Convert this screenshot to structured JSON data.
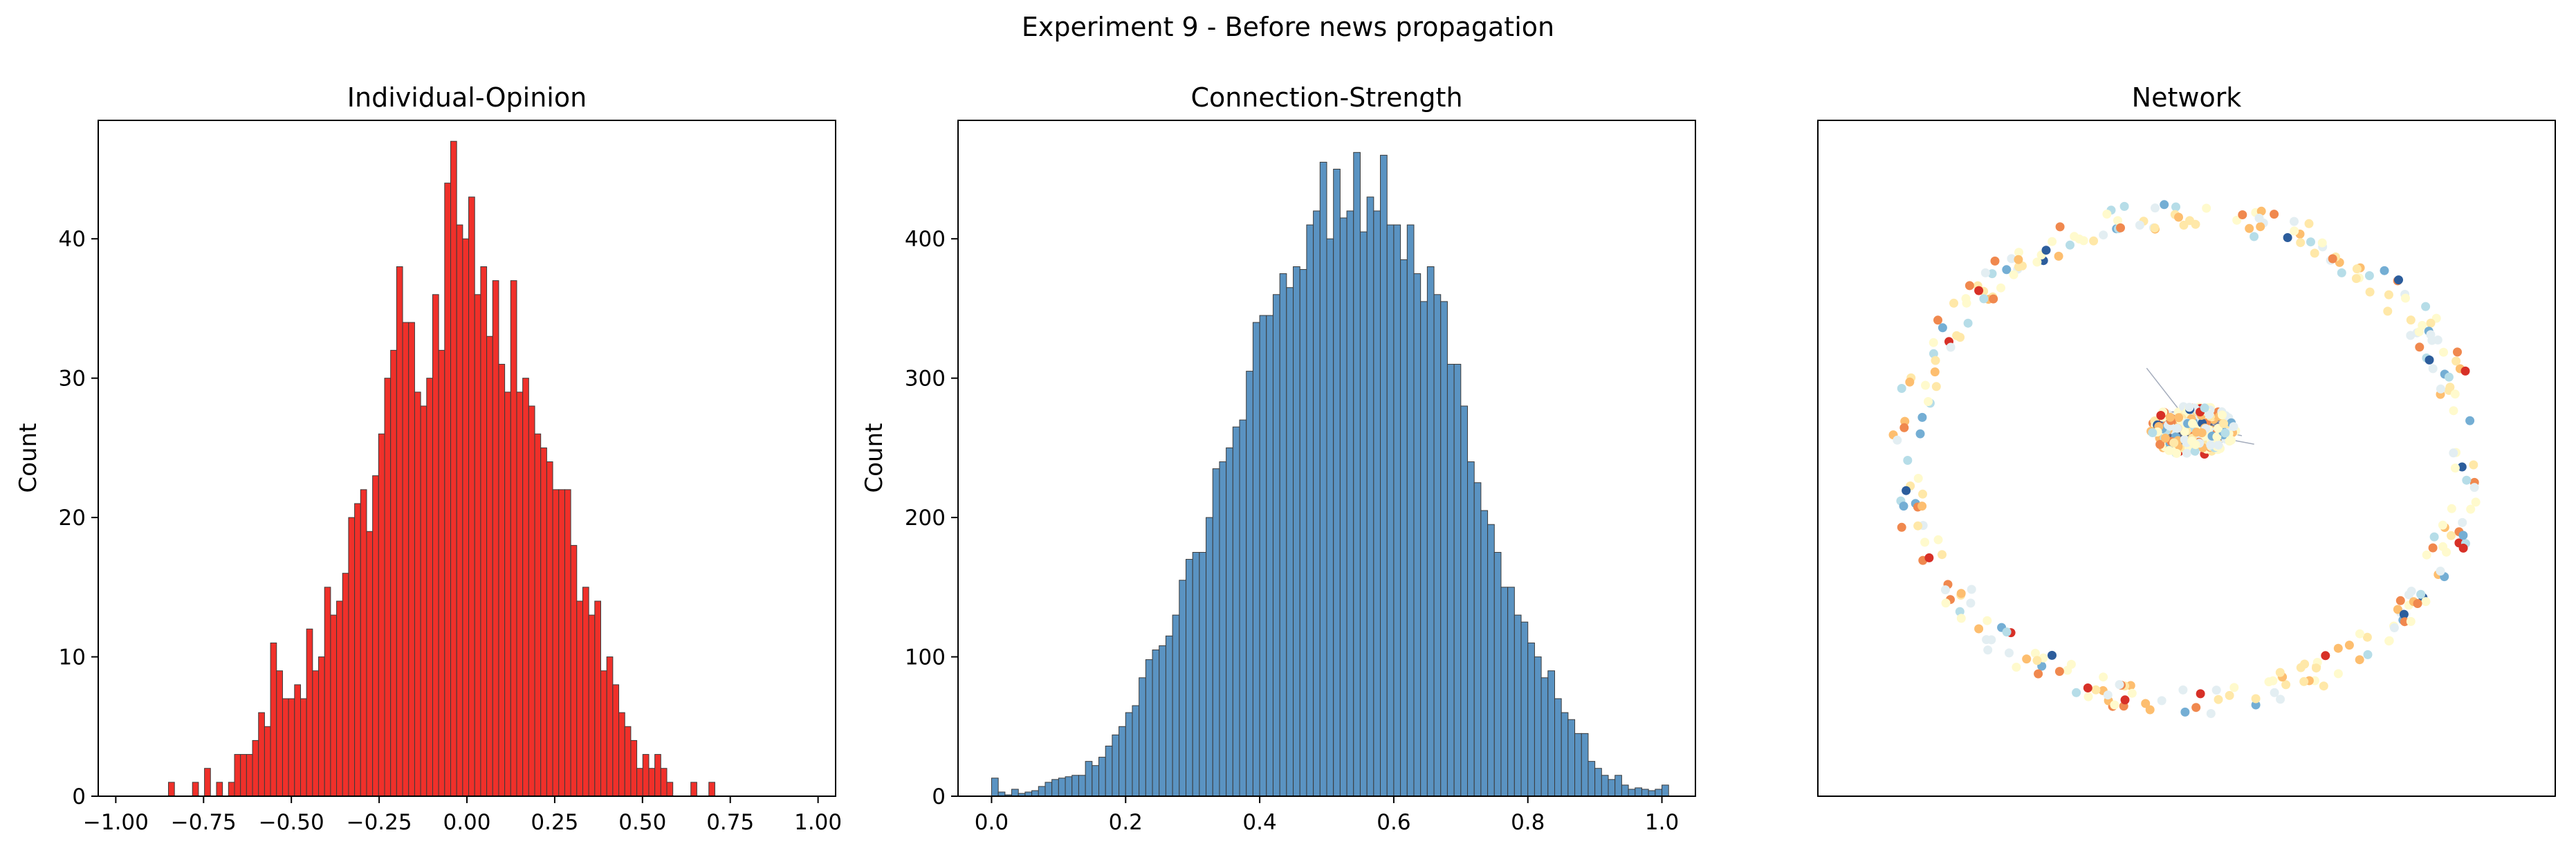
{
  "figure": {
    "suptitle": "Experiment 9 - Before news propagation"
  },
  "colors": {
    "opinion_bar": "#f0302a",
    "strength_bar": "#5a93c2",
    "bar_edge": "#3b3b3b",
    "axes": "#000000"
  },
  "chart_data": [
    {
      "type": "bar",
      "title": "Individual-Opinion",
      "xlabel": "",
      "ylabel": "Count",
      "xlim": [
        -1.05,
        1.05
      ],
      "ylim": [
        0,
        48.5
      ],
      "xticks": [
        -1.0,
        -0.75,
        -0.5,
        -0.25,
        0.0,
        0.25,
        0.5,
        0.75,
        1.0
      ],
      "xtick_labels": [
        "−1.00",
        "−0.75",
        "−0.50",
        "−0.25",
        "0.00",
        "0.25",
        "0.50",
        "0.75",
        "1.00"
      ],
      "yticks": [
        0,
        10,
        20,
        30,
        40
      ],
      "ytick_labels": [
        "0",
        "10",
        "20",
        "30",
        "40"
      ],
      "bin_start": -0.85,
      "bin_width": 0.0171,
      "values": [
        1,
        0,
        0,
        0,
        1,
        0,
        2,
        0,
        1,
        0,
        1,
        3,
        3,
        3,
        4,
        6,
        5,
        11,
        9,
        7,
        7,
        8,
        7,
        12,
        9,
        10,
        15,
        13,
        14,
        16,
        20,
        21,
        22,
        19,
        23,
        26,
        30,
        32,
        38,
        34,
        34,
        29,
        28,
        30,
        36,
        32,
        44,
        47,
        41,
        40,
        43,
        36,
        38,
        33,
        37,
        31,
        29,
        37,
        29,
        30,
        28,
        26,
        25,
        24,
        22,
        22,
        22,
        18,
        14,
        15,
        13,
        14,
        9,
        10,
        8,
        6,
        5,
        4,
        2,
        3,
        2,
        3,
        2,
        1,
        0,
        0,
        0,
        1,
        0,
        0,
        1
      ]
    },
    {
      "type": "bar",
      "title": "Connection-Strength",
      "xlabel": "",
      "ylabel": "Count",
      "xlim": [
        -0.05,
        1.05
      ],
      "ylim": [
        0,
        485
      ],
      "xticks": [
        0.0,
        0.2,
        0.4,
        0.6,
        0.8,
        1.0
      ],
      "xtick_labels": [
        "0.0",
        "0.2",
        "0.4",
        "0.6",
        "0.8",
        "1.0"
      ],
      "yticks": [
        0,
        100,
        200,
        300,
        400
      ],
      "ytick_labels": [
        "0",
        "100",
        "200",
        "300",
        "400"
      ],
      "bin_start": 0.0,
      "bin_width": 0.01,
      "values": [
        13,
        3,
        1,
        5,
        2,
        3,
        4,
        7,
        10,
        12,
        13,
        14,
        15,
        15,
        25,
        22,
        28,
        36,
        44,
        50,
        60,
        65,
        85,
        98,
        105,
        108,
        115,
        130,
        155,
        170,
        175,
        175,
        200,
        235,
        240,
        250,
        265,
        270,
        305,
        340,
        345,
        345,
        360,
        375,
        365,
        380,
        378,
        410,
        420,
        455,
        400,
        450,
        415,
        420,
        462,
        405,
        430,
        420,
        460,
        410,
        410,
        385,
        410,
        375,
        355,
        380,
        360,
        355,
        310,
        310,
        280,
        240,
        225,
        205,
        195,
        175,
        150,
        150,
        130,
        125,
        110,
        100,
        85,
        90,
        70,
        60,
        55,
        45,
        45,
        25,
        20,
        15,
        12,
        15,
        8,
        5,
        6,
        5,
        4,
        5,
        8
      ]
    },
    {
      "type": "scatter",
      "title": "Network",
      "xlabel": "",
      "ylabel": "",
      "xlim": [
        -1.2,
        1.2
      ],
      "ylim": [
        -1.2,
        1.2
      ],
      "ring_node_count": 300,
      "cluster_node_count": 240,
      "ring_radius_x": 0.95,
      "ring_radius_y": 0.9,
      "cluster_center": [
        0.02,
        0.1
      ],
      "cluster_half_width": 0.14,
      "cluster_half_height": 0.09,
      "node_colormap": [
        "#2c5d9c",
        "#74aed4",
        "#b6dde8",
        "#e3eef2",
        "#fffacd",
        "#ffe8a8",
        "#fdbe6f",
        "#f0884e",
        "#d73027"
      ]
    }
  ]
}
